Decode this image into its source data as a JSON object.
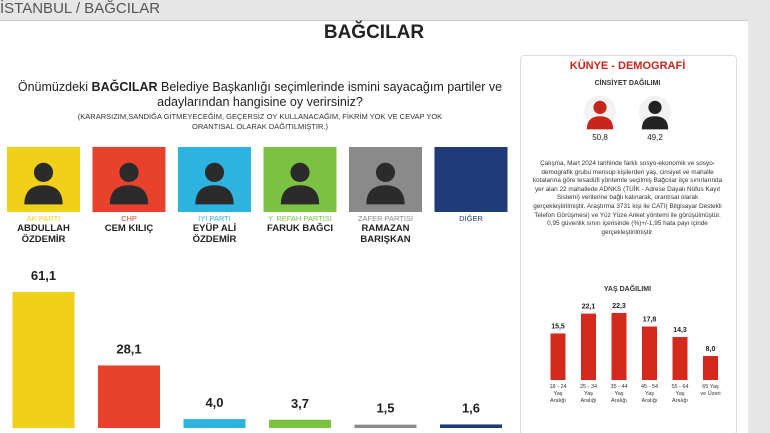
{
  "header": {
    "location": "İSTANBUL / BAĞCILAR",
    "title": "BAĞCILAR"
  },
  "question": {
    "before": "Önümüzdeki",
    "bold": "BAĞCILAR",
    "after": "Belediye Başkanlığı seçimlerinde ismini sayacağım partiler ve adaylarından hangisine oy verirsiniz?",
    "note": "(KARARSIZIM,SANDIĞA GİTMEYECEĞİM, GEÇERSİZ OY KULLANACAĞIM, FİKRİM YOK VE CEVAP YOK ORANTISAL OLARAK DAĞITILMIŞTIR.)"
  },
  "kunye": {
    "title": "KÜNYE - DEMOGRAFİ",
    "method": "Çalışma, Mart 2024 tarihinde farklı sosyo-ekonomik ve sosyo-demografik grubu mensup kişilerden yaş, cinsiyet ve mahalle kotalarına göre tesadüfi yöntemle seçilmiş Bağcılar ilçe sınırlarında yer alan 22 mahallede ADNKS (TÜİK - Adrese Dayalı Nüfus Kayıt Sistemi) verilerine bağlı kalınarak, orantısal olarak gerçekleştirilmiştir. Araştırma 3731 kişi ile CATI( Bilgisayar Destekli Telefon Görüşmesi) ve Yüz Yüze Anket yöntemi ile görüşülmüştür. 0,95 güvenlik sınırı içerisinde (%)+/-1,95 hata payı içinde gerçekleştirilmiştir."
  },
  "chart_data": [
    {
      "type": "bar",
      "categories": [
        "AK PARTİ",
        "CHP",
        "İYİ PARTİ",
        "Y. REFAH PARTİSİ",
        "ZAFER PARTİSİ",
        "DİĞER"
      ],
      "names": [
        "ABDULLAH\nÖZDEMİR",
        "CEM KILIÇ",
        "EYÜP ALİ\nÖZDEMİR",
        "FARUK BAĞCI",
        "RAMAZAN\nBARIŞKAN",
        null
      ],
      "values": [
        61.1,
        28.1,
        4.0,
        3.7,
        1.5,
        1.6
      ],
      "value_labels": [
        "61,1",
        "28,1",
        "4,0",
        "3,7",
        "1,5",
        "1,6"
      ],
      "colors": [
        "#f0d019",
        "#e8412c",
        "#2db3df",
        "#7cc242",
        "#8a8a8a",
        "#1f3b78"
      ]
    },
    {
      "type": "bar",
      "title": "YAŞ DAĞILIMI",
      "categories": [
        "18 - 24\nYaş\nAralığı",
        "25 - 34\nYaş\nAralığı",
        "35 - 44\nYaş\nAralığı",
        "45 - 54\nYaş\nAralığı",
        "55 - 64\nYaş\nAralığı",
        "65 Yaş\nve Üzeri"
      ],
      "values": [
        15.5,
        22.1,
        22.3,
        17.8,
        14.3,
        8.0
      ],
      "value_labels": [
        "15,5",
        "22,1",
        "22,3",
        "17,8",
        "14,3",
        "8,0"
      ],
      "color": "#d42a1e"
    },
    {
      "type": "pictogram",
      "title": "CİNSİYET DAĞILIMI",
      "categories": [
        "Kadın",
        "Erkek"
      ],
      "values": [
        50.8,
        49.2
      ],
      "value_labels": [
        "50,8",
        "49,2"
      ],
      "colors": [
        "#c8261c",
        "#222222"
      ]
    }
  ]
}
